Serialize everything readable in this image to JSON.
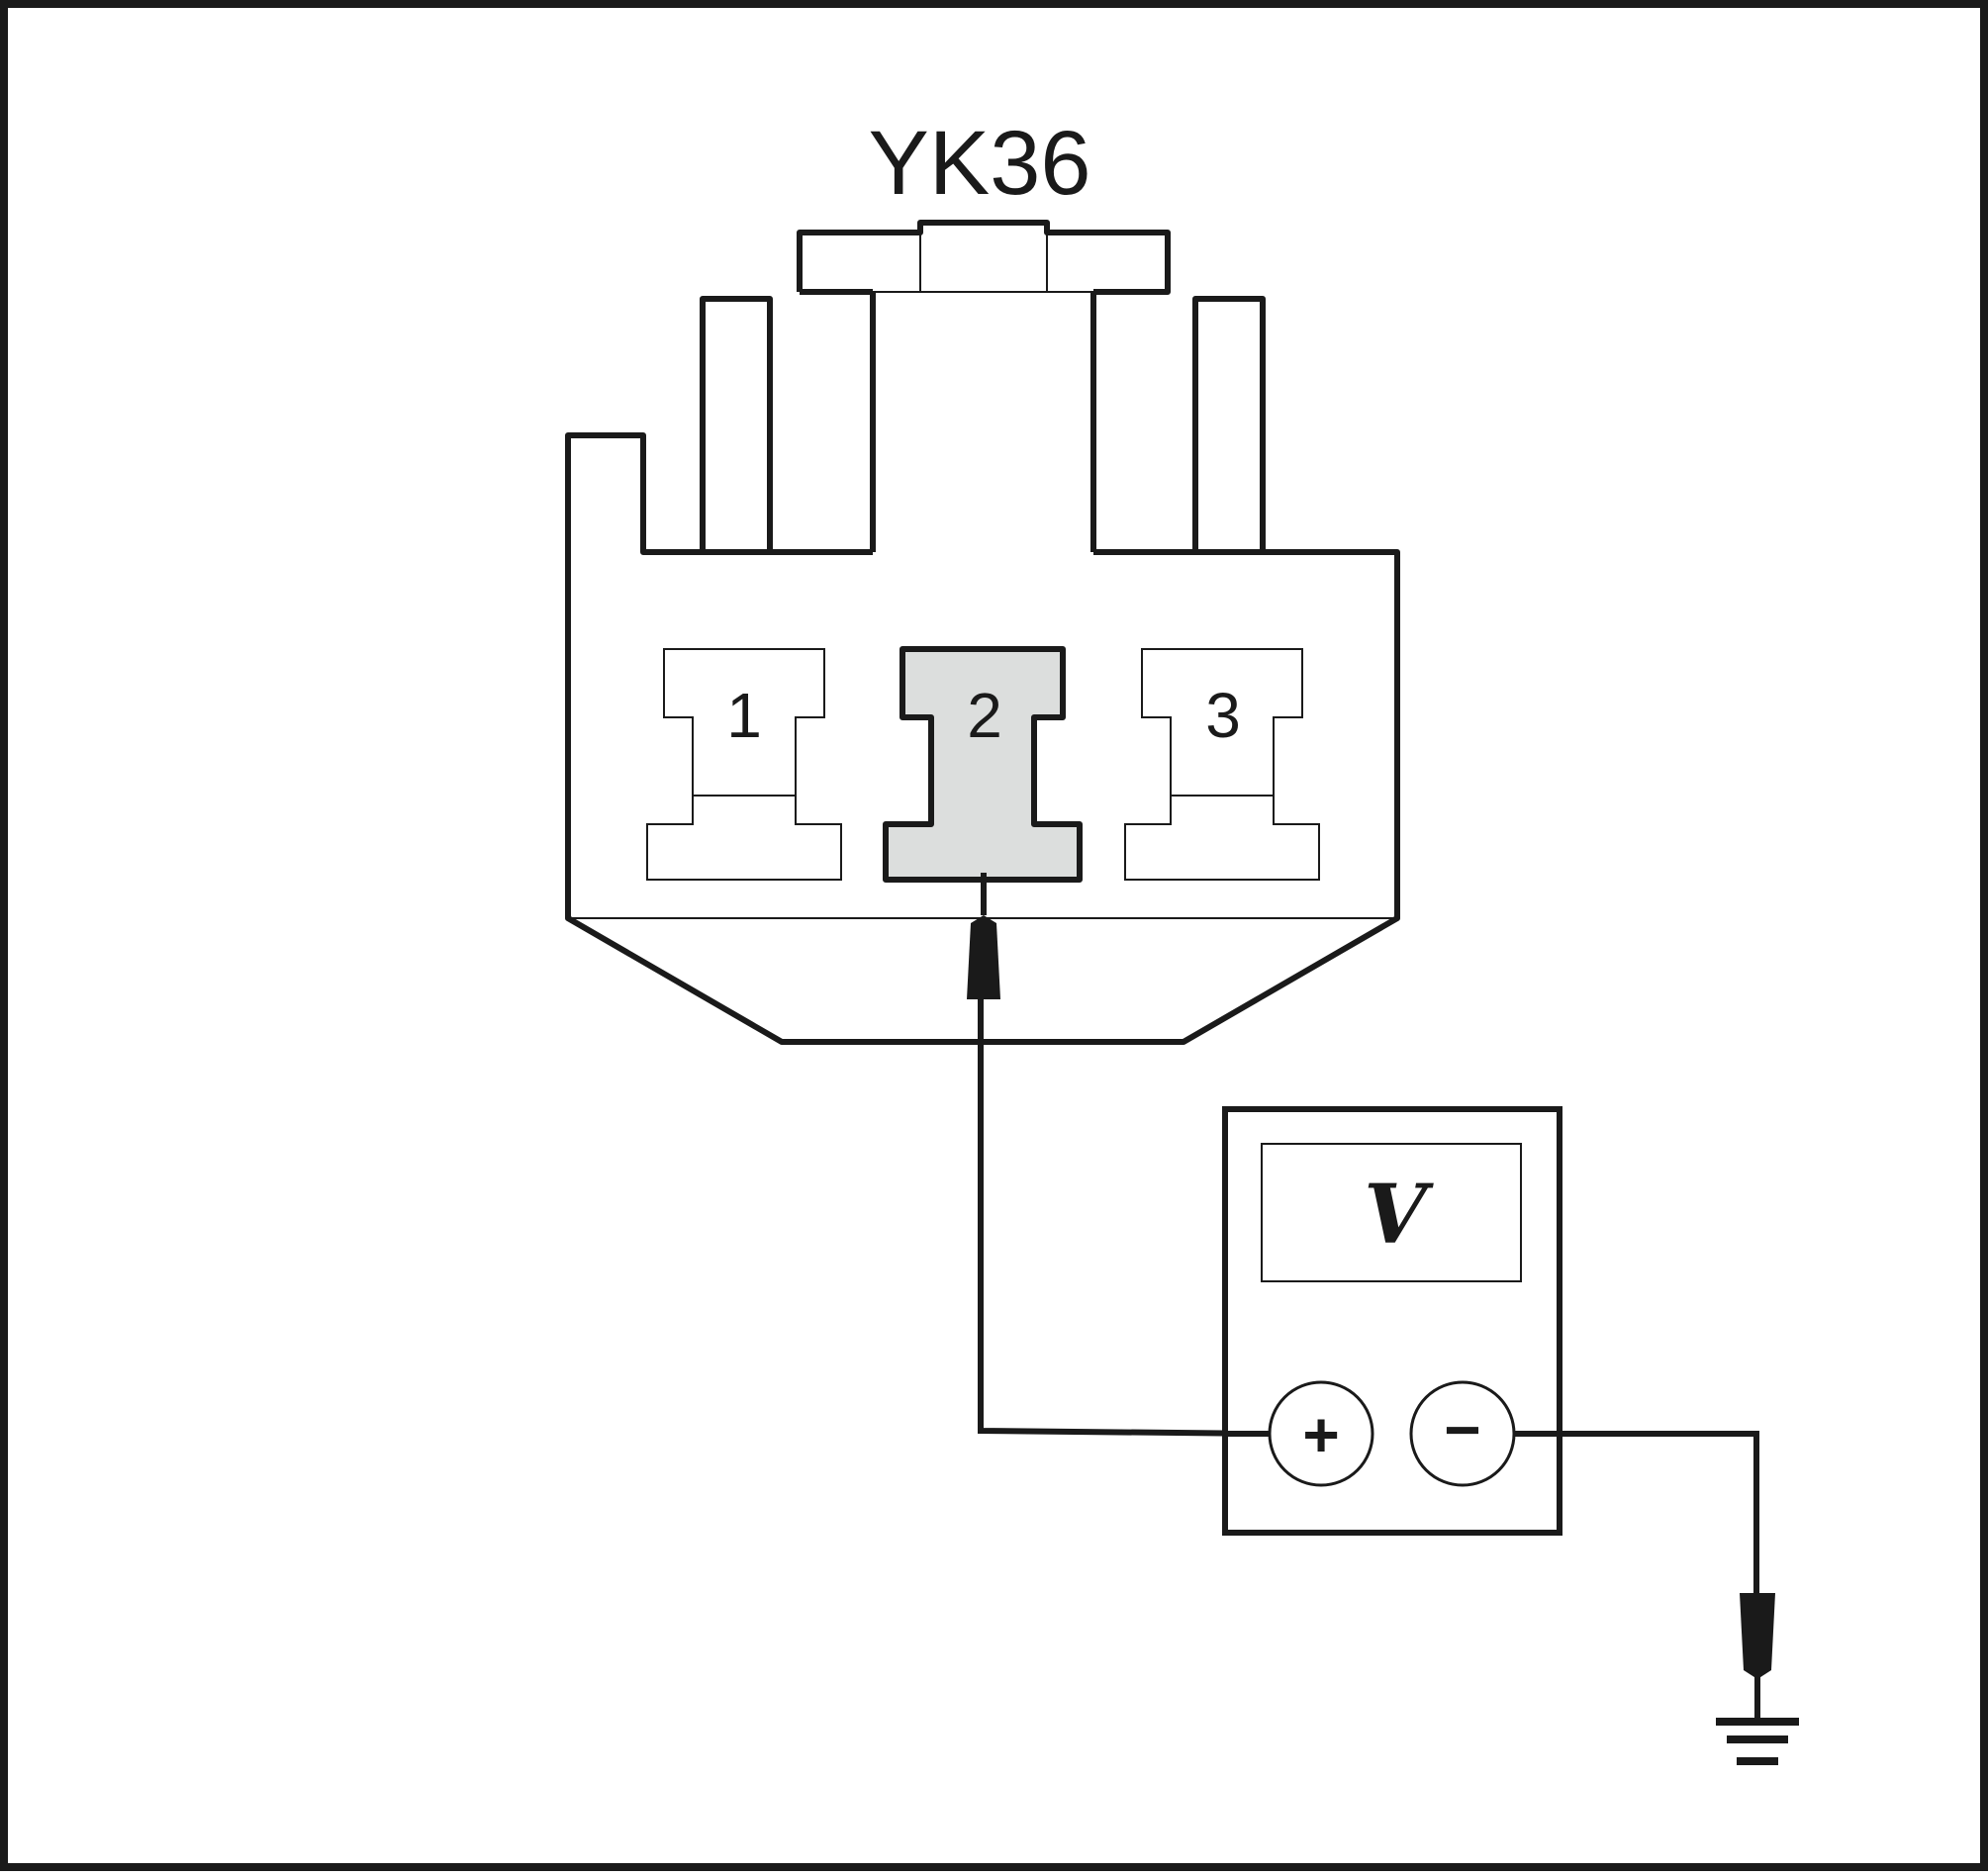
{
  "diagram": {
    "connector_id": "YK36",
    "pins": [
      {
        "number": "1",
        "highlighted": false
      },
      {
        "number": "2",
        "highlighted": true
      },
      {
        "number": "3",
        "highlighted": false
      }
    ],
    "meter": {
      "display_symbol": "V",
      "positive_terminal_symbol": "+",
      "negative_terminal_symbol": "−"
    },
    "ground_symbol": "ground-icon",
    "colors": {
      "line": "#1a1a1a",
      "pin_highlight_fill": "#dcdedd",
      "background": "#ffffff"
    }
  }
}
